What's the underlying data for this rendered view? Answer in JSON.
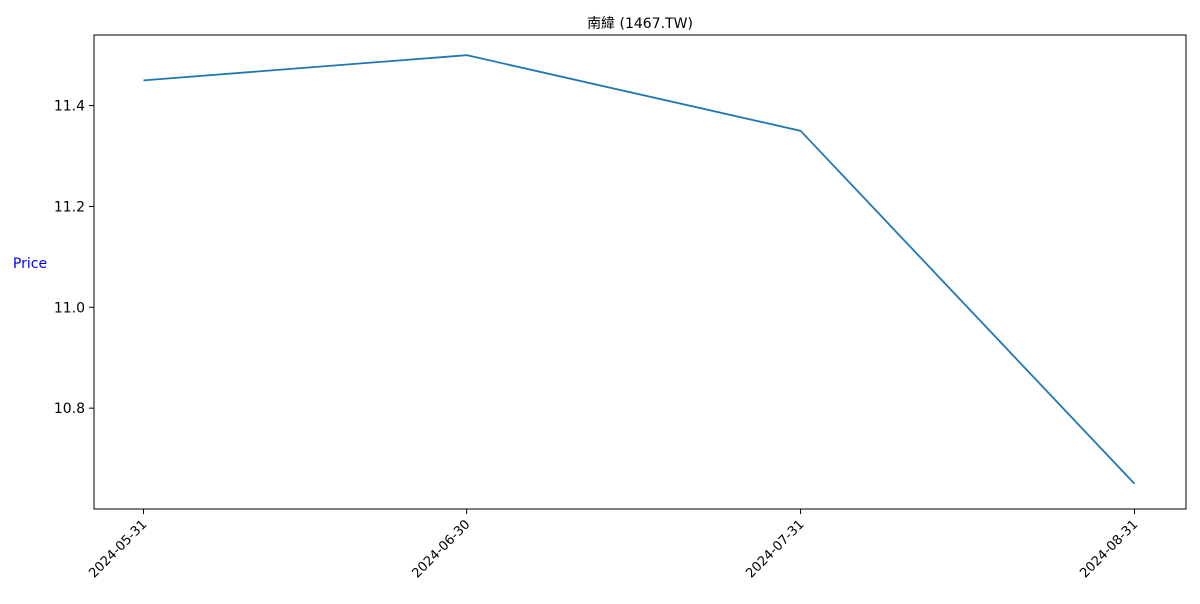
{
  "chart_data": {
    "type": "line",
    "title": "南緯 (1467.TW)",
    "xlabel": "",
    "ylabel": "Price",
    "x": [
      "2024-05-31",
      "2024-06-30",
      "2024-07-31",
      "2024-08-31"
    ],
    "series": [
      {
        "values": [
          11.45,
          11.5,
          11.35,
          10.65
        ]
      }
    ],
    "ylim": [
      10.6,
      11.54
    ],
    "yticks": [
      10.8,
      11.0,
      11.2,
      11.4
    ],
    "ytick_labels": [
      "10.8",
      "11.0",
      "11.2",
      "11.4"
    ],
    "grid": false,
    "legend": "none",
    "colors": {
      "line": "#1f77b4",
      "ylabel": "#0000ff",
      "axes": "#000000"
    }
  }
}
